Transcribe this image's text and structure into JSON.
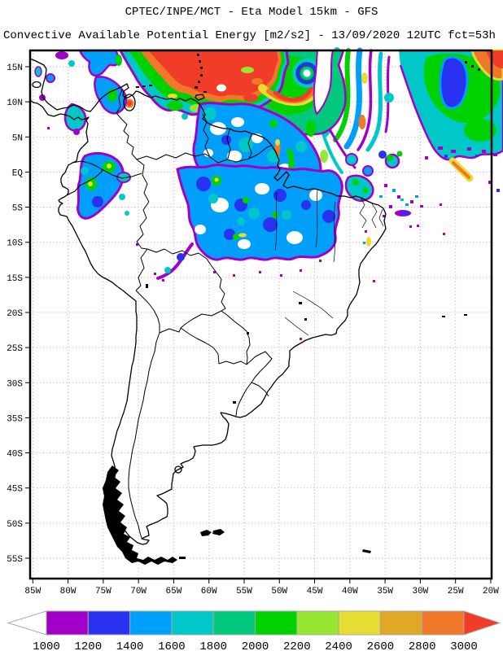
{
  "header": {
    "line1": "CPTEC/INPE/MCT -  Eta Model 15km - GFS",
    "line2": "Convective Available Potential Energy [m2/s2] - 13/09/2020 12UTC fct=53h"
  },
  "axes": {
    "lat_labels": [
      "15N",
      "10N",
      "5N",
      "EQ",
      "5S",
      "10S",
      "15S",
      "20S",
      "25S",
      "30S",
      "35S",
      "40S",
      "45S",
      "50S",
      "55S"
    ],
    "lon_labels": [
      "85W",
      "80W",
      "75W",
      "70W",
      "65W",
      "60W",
      "55W",
      "50W",
      "45W",
      "40W",
      "35W",
      "30W",
      "25W",
      "20W"
    ]
  },
  "colorbar": {
    "labels": [
      "1000",
      "1200",
      "1400",
      "1600",
      "1800",
      "2000",
      "2200",
      "2400",
      "2600",
      "2800",
      "3000"
    ],
    "segment_color_keys": [
      "c1000",
      "c1200",
      "c1400",
      "c1600",
      "c1800",
      "c2000",
      "c2200",
      "c2400",
      "c2600",
      "c2800"
    ],
    "over_color_key": "c3000",
    "under_color": "#FFFFFF",
    "outline_color": "#A8A8A8"
  },
  "palette": {
    "c1000": "#A000C8",
    "c1200": "#2832F0",
    "c1400": "#00A0FA",
    "c1600": "#00C8C8",
    "c1800": "#00C87D",
    "c2000": "#00D200",
    "c2200": "#96E632",
    "c2400": "#E6DC32",
    "c2600": "#E1A828",
    "c2800": "#F07828",
    "c3000": "#F03C28"
  }
}
